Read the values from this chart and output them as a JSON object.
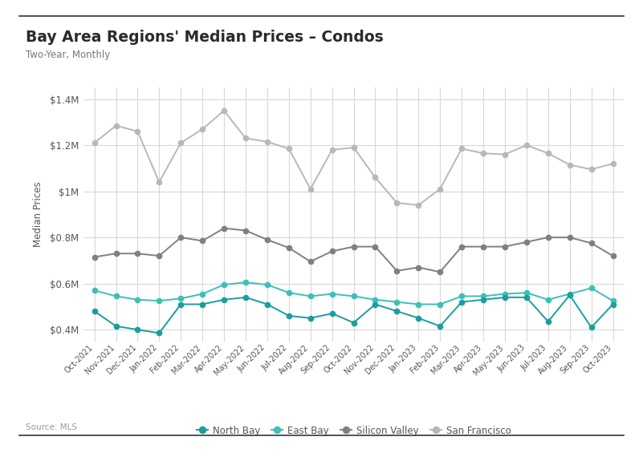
{
  "title": "Bay Area Regions' Median Prices – Condos",
  "subtitle": "Two-Year, Monthly",
  "source": "Source: MLS",
  "ylabel": "Median Prices",
  "x_labels": [
    "Oct-2021",
    "Nov-2021",
    "Dec-2021",
    "Jan-2022",
    "Feb-2022",
    "Mar-2022",
    "Apr-2022",
    "May-2022",
    "Jun-2022",
    "Jul-2022",
    "Aug-2022",
    "Sep-2022",
    "Oct-2022",
    "Nov-2022",
    "Dec-2022",
    "Jan-2023",
    "Feb-2023",
    "Mar-2023",
    "Apr-2023",
    "May-2023",
    "Jun-2023",
    "Jul-2023",
    "Aug-2023",
    "Sep-2023",
    "Oct-2023"
  ],
  "north_bay": [
    480000,
    415000,
    400000,
    385000,
    510000,
    510000,
    530000,
    540000,
    510000,
    460000,
    450000,
    470000,
    430000,
    510000,
    480000,
    450000,
    415000,
    520000,
    530000,
    540000,
    540000,
    435000,
    550000,
    410000,
    510000
  ],
  "east_bay": [
    570000,
    545000,
    530000,
    525000,
    535000,
    555000,
    595000,
    605000,
    595000,
    560000,
    545000,
    555000,
    545000,
    530000,
    520000,
    510000,
    510000,
    545000,
    545000,
    555000,
    560000,
    530000,
    555000,
    580000,
    525000
  ],
  "silicon_valley": [
    715000,
    730000,
    730000,
    720000,
    800000,
    785000,
    840000,
    830000,
    790000,
    755000,
    695000,
    740000,
    760000,
    760000,
    655000,
    670000,
    650000,
    760000,
    760000,
    760000,
    780000,
    800000,
    800000,
    775000,
    720000
  ],
  "san_francisco": [
    1210000,
    1285000,
    1260000,
    1040000,
    1210000,
    1270000,
    1350000,
    1230000,
    1215000,
    1185000,
    1010000,
    1180000,
    1190000,
    1060000,
    950000,
    940000,
    1010000,
    1185000,
    1165000,
    1160000,
    1200000,
    1165000,
    1115000,
    1095000,
    1120000
  ],
  "north_bay_color": "#1a9e9e",
  "east_bay_color": "#3dbfb8",
  "silicon_valley_color": "#808080",
  "san_francisco_color": "#b8b8b8",
  "bg_color": "#ffffff",
  "grid_color": "#d8d8d8",
  "border_color": "#333333",
  "ylim": [
    350000,
    1450000
  ],
  "yticks": [
    400000,
    600000,
    800000,
    1000000,
    1200000,
    1400000
  ]
}
